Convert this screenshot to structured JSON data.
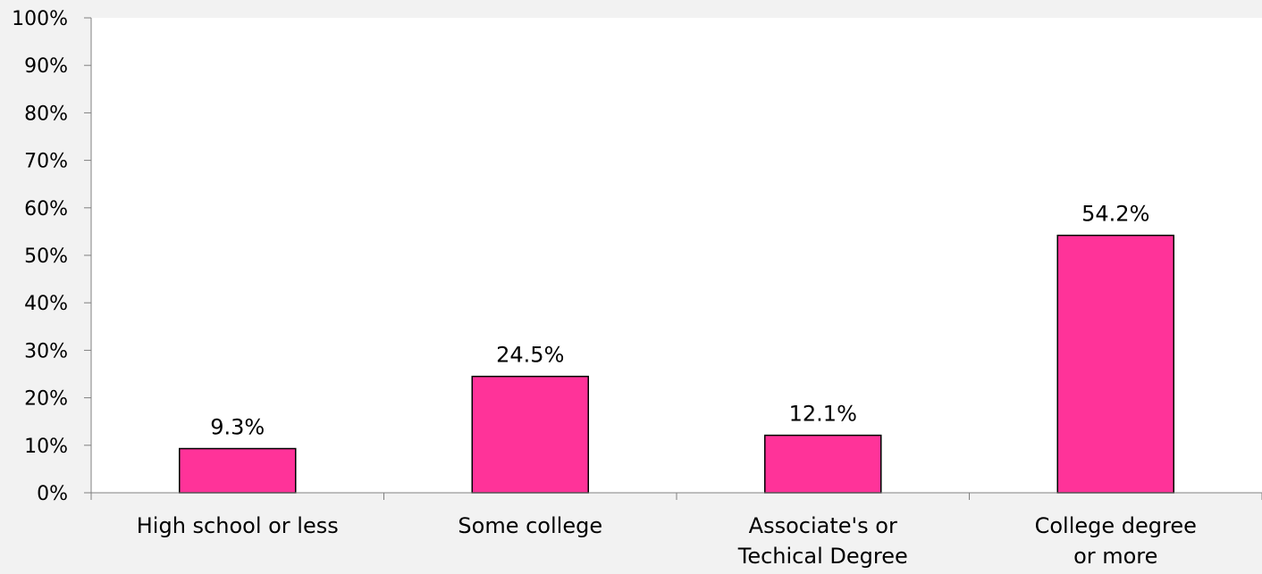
{
  "chart_data": {
    "type": "bar",
    "title": "",
    "xlabel": "",
    "ylabel": "",
    "categories": [
      [
        "High school or less"
      ],
      [
        "Some college"
      ],
      [
        "Associate's or",
        "Techical Degree"
      ],
      [
        "College degree",
        "or more"
      ]
    ],
    "values": [
      9.3,
      24.5,
      12.1,
      54.2
    ],
    "data_labels": [
      "9.3%",
      "24.5%",
      "12.1%",
      "54.2%"
    ],
    "ylim": [
      0,
      100
    ],
    "yticks": [
      0,
      10,
      20,
      30,
      40,
      50,
      60,
      70,
      80,
      90,
      100
    ],
    "ytick_labels": [
      "0%",
      "10%",
      "20%",
      "30%",
      "40%",
      "50%",
      "60%",
      "70%",
      "80%",
      "90%",
      "100%"
    ],
    "grid": false,
    "legend": "none",
    "colors": {
      "bar_fill": "#ff3399",
      "bar_stroke": "#000000",
      "plot_background": "#ffffff",
      "page_background": "#f2f2f2",
      "axis": "#808080"
    }
  }
}
